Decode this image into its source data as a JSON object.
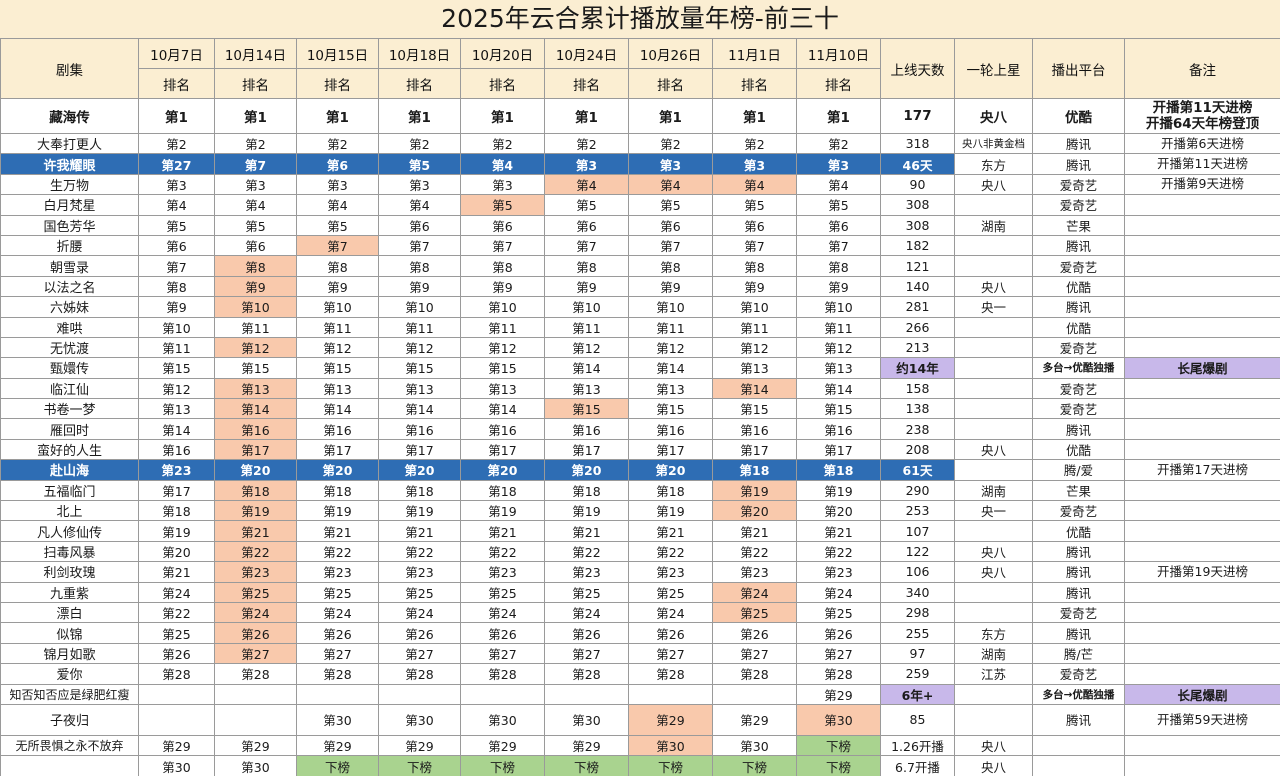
{
  "title": "2025年云合累计播放量年榜-前三十",
  "header": {
    "drama": "剧集",
    "dates": [
      "10月7日",
      "10月14日",
      "10月15日",
      "10月18日",
      "10月20日",
      "10月24日",
      "10月26日",
      "11月1日",
      "11月10日"
    ],
    "rank_label": "排名",
    "days": "上线天数",
    "first_run": "一轮上星",
    "platform": "播出平台",
    "remark": "备注"
  },
  "rows": [
    {
      "name": "藏海传",
      "ranks": [
        "第1",
        "第1",
        "第1",
        "第1",
        "第1",
        "第1",
        "第1",
        "第1",
        "第1"
      ],
      "days": "177",
      "star": "央八",
      "platform": "优酷",
      "remark": "开播第11天进榜\n开播64天年榜登顶"
    },
    {
      "name": "大奉打更人",
      "ranks": [
        "第2",
        "第2",
        "第2",
        "第2",
        "第2",
        "第2",
        "第2",
        "第2",
        "第2"
      ],
      "days": "318",
      "star": "央八非黄金档",
      "platform": "腾讯",
      "remark": "开播第6天进榜"
    },
    {
      "name": "许我耀眼",
      "ranks": [
        "第27",
        "第7",
        "第6",
        "第5",
        "第4",
        "第3",
        "第3",
        "第3",
        "第3"
      ],
      "days": "46天",
      "star": "东方",
      "platform": "腾讯",
      "remark": "开播第11天进榜"
    },
    {
      "name": "生万物",
      "ranks": [
        "第3",
        "第3",
        "第3",
        "第3",
        "第3",
        "第4",
        "第4",
        "第4",
        "第4"
      ],
      "days": "90",
      "star": "央八",
      "platform": "爱奇艺",
      "remark": "开播第9天进榜"
    },
    {
      "name": "白月梵星",
      "ranks": [
        "第4",
        "第4",
        "第4",
        "第4",
        "第5",
        "第5",
        "第5",
        "第5",
        "第5"
      ],
      "days": "308",
      "star": "",
      "platform": "爱奇艺",
      "remark": ""
    },
    {
      "name": "国色芳华",
      "ranks": [
        "第5",
        "第5",
        "第5",
        "第6",
        "第6",
        "第6",
        "第6",
        "第6",
        "第6"
      ],
      "days": "308",
      "star": "湖南",
      "platform": "芒果",
      "remark": ""
    },
    {
      "name": "折腰",
      "ranks": [
        "第6",
        "第6",
        "第7",
        "第7",
        "第7",
        "第7",
        "第7",
        "第7",
        "第7"
      ],
      "days": "182",
      "star": "",
      "platform": "腾讯",
      "remark": ""
    },
    {
      "name": "朝雪录",
      "ranks": [
        "第7",
        "第8",
        "第8",
        "第8",
        "第8",
        "第8",
        "第8",
        "第8",
        "第8"
      ],
      "days": "121",
      "star": "",
      "platform": "爱奇艺",
      "remark": ""
    },
    {
      "name": "以法之名",
      "ranks": [
        "第8",
        "第9",
        "第9",
        "第9",
        "第9",
        "第9",
        "第9",
        "第9",
        "第9"
      ],
      "days": "140",
      "star": "央八",
      "platform": "优酷",
      "remark": ""
    },
    {
      "name": "六姊妹",
      "ranks": [
        "第9",
        "第10",
        "第10",
        "第10",
        "第10",
        "第10",
        "第10",
        "第10",
        "第10"
      ],
      "days": "281",
      "star": "央一",
      "platform": "腾讯",
      "remark": ""
    },
    {
      "name": "难哄",
      "ranks": [
        "第10",
        "第11",
        "第11",
        "第11",
        "第11",
        "第11",
        "第11",
        "第11",
        "第11"
      ],
      "days": "266",
      "star": "",
      "platform": "优酷",
      "remark": ""
    },
    {
      "name": "无忧渡",
      "ranks": [
        "第11",
        "第12",
        "第12",
        "第12",
        "第12",
        "第12",
        "第12",
        "第12",
        "第12"
      ],
      "days": "213",
      "star": "",
      "platform": "爱奇艺",
      "remark": ""
    },
    {
      "name": "甄嬛传",
      "ranks": [
        "第15",
        "第15",
        "第15",
        "第15",
        "第15",
        "第14",
        "第14",
        "第13",
        "第13"
      ],
      "days": "约14年",
      "star": "",
      "platform": "多台→优酷独播",
      "remark": "长尾爆剧"
    },
    {
      "name": "临江仙",
      "ranks": [
        "第12",
        "第13",
        "第13",
        "第13",
        "第13",
        "第13",
        "第13",
        "第14",
        "第14"
      ],
      "days": "158",
      "star": "",
      "platform": "爱奇艺",
      "remark": ""
    },
    {
      "name": "书卷一梦",
      "ranks": [
        "第13",
        "第14",
        "第14",
        "第14",
        "第14",
        "第15",
        "第15",
        "第15",
        "第15"
      ],
      "days": "138",
      "star": "",
      "platform": "爱奇艺",
      "remark": ""
    },
    {
      "name": "雁回时",
      "ranks": [
        "第14",
        "第16",
        "第16",
        "第16",
        "第16",
        "第16",
        "第16",
        "第16",
        "第16"
      ],
      "days": "238",
      "star": "",
      "platform": "腾讯",
      "remark": ""
    },
    {
      "name": "蛮好的人生",
      "ranks": [
        "第16",
        "第17",
        "第17",
        "第17",
        "第17",
        "第17",
        "第17",
        "第17",
        "第17"
      ],
      "days": "208",
      "star": "央八",
      "platform": "优酷",
      "remark": ""
    },
    {
      "name": "赴山海",
      "ranks": [
        "第23",
        "第20",
        "第20",
        "第20",
        "第20",
        "第20",
        "第20",
        "第18",
        "第18"
      ],
      "days": "61天",
      "star": "",
      "platform": "腾/爱",
      "remark": "开播第17天进榜"
    },
    {
      "name": "五福临门",
      "ranks": [
        "第17",
        "第18",
        "第18",
        "第18",
        "第18",
        "第18",
        "第18",
        "第19",
        "第19"
      ],
      "days": "290",
      "star": "湖南",
      "platform": "芒果",
      "remark": ""
    },
    {
      "name": "北上",
      "ranks": [
        "第18",
        "第19",
        "第19",
        "第19",
        "第19",
        "第19",
        "第19",
        "第20",
        "第20"
      ],
      "days": "253",
      "star": "央一",
      "platform": "爱奇艺",
      "remark": ""
    },
    {
      "name": "凡人修仙传",
      "ranks": [
        "第19",
        "第21",
        "第21",
        "第21",
        "第21",
        "第21",
        "第21",
        "第21",
        "第21"
      ],
      "days": "107",
      "star": "",
      "platform": "优酷",
      "remark": ""
    },
    {
      "name": "扫毒风暴",
      "ranks": [
        "第20",
        "第22",
        "第22",
        "第22",
        "第22",
        "第22",
        "第22",
        "第22",
        "第22"
      ],
      "days": "122",
      "star": "央八",
      "platform": "腾讯",
      "remark": ""
    },
    {
      "name": "利剑玫瑰",
      "ranks": [
        "第21",
        "第23",
        "第23",
        "第23",
        "第23",
        "第23",
        "第23",
        "第23",
        "第23"
      ],
      "days": "106",
      "star": "央八",
      "platform": "腾讯",
      "remark": "开播第19天进榜"
    },
    {
      "name": "九重紫",
      "ranks": [
        "第24",
        "第25",
        "第25",
        "第25",
        "第25",
        "第25",
        "第25",
        "第24",
        "第24"
      ],
      "days": "340",
      "star": "",
      "platform": "腾讯",
      "remark": ""
    },
    {
      "name": "漂白",
      "ranks": [
        "第22",
        "第24",
        "第24",
        "第24",
        "第24",
        "第24",
        "第24",
        "第25",
        "第25"
      ],
      "days": "298",
      "star": "",
      "platform": "爱奇艺",
      "remark": ""
    },
    {
      "name": "似锦",
      "ranks": [
        "第25",
        "第26",
        "第26",
        "第26",
        "第26",
        "第26",
        "第26",
        "第26",
        "第26"
      ],
      "days": "255",
      "star": "东方",
      "platform": "腾讯",
      "remark": ""
    },
    {
      "name": "锦月如歌",
      "ranks": [
        "第26",
        "第27",
        "第27",
        "第27",
        "第27",
        "第27",
        "第27",
        "第27",
        "第27"
      ],
      "days": "97",
      "star": "湖南",
      "platform": "腾/芒",
      "remark": ""
    },
    {
      "name": "爱你",
      "ranks": [
        "第28",
        "第28",
        "第28",
        "第28",
        "第28",
        "第28",
        "第28",
        "第28",
        "第28"
      ],
      "days": "259",
      "star": "江苏",
      "platform": "爱奇艺",
      "remark": ""
    },
    {
      "name": "知否知否应是绿肥红瘦",
      "ranks": [
        "",
        "",
        "",
        "",
        "",
        "",
        "",
        "",
        "第29"
      ],
      "days": "6年+",
      "star": "",
      "platform": "多台→优酷独播",
      "remark": "长尾爆剧"
    },
    {
      "name": "子夜归",
      "ranks": [
        "",
        "",
        "第30",
        "第30",
        "第30",
        "第30",
        "第29",
        "第29",
        "第30"
      ],
      "days": "85",
      "star": "",
      "platform": "腾讯",
      "remark": "开播第59天进榜"
    },
    {
      "name": "无所畏惧之永不放弃",
      "ranks": [
        "第29",
        "第29",
        "第29",
        "第29",
        "第29",
        "第29",
        "第30",
        "第30",
        "下榜"
      ],
      "days": "1.26开播",
      "star": "央八",
      "platform": "",
      "remark": ""
    },
    {
      "name": "",
      "ranks": [
        "第30",
        "第30",
        "下榜",
        "下榜",
        "下榜",
        "下榜",
        "下榜",
        "下榜",
        "下榜"
      ],
      "days": "6.7开播",
      "star": "央八",
      "platform": "",
      "remark": ""
    }
  ],
  "colors": {
    "header_bg": "#fbeed2",
    "highlight_blue": "#2e6db4",
    "rank_up": "#f9c9ac",
    "rank_down": "#a9d38f",
    "long_tail_purple": "#c8b8ea"
  }
}
